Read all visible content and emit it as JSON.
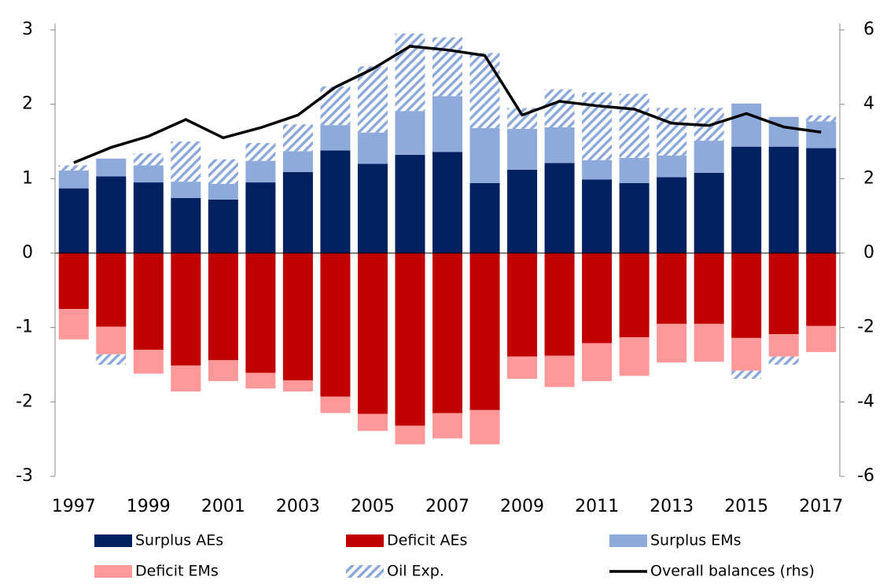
{
  "chart_data": {
    "type": "bar",
    "categories": [
      "1997",
      null,
      "1999",
      null,
      "2001",
      null,
      "2003",
      null,
      "2005",
      null,
      "2007",
      null,
      "2009",
      null,
      "2011",
      null,
      "2013",
      null,
      "2015",
      null,
      "2017"
    ],
    "ylim": [
      -3,
      3
    ],
    "yticks": [
      -3,
      -2,
      -1,
      0,
      1,
      2,
      3
    ],
    "y2lim": [
      -6,
      6
    ],
    "y2ticks": [
      -6,
      -4,
      -2,
      0,
      2,
      4,
      6
    ],
    "series": [
      {
        "name": "Surplus AEs",
        "color": "#002060",
        "values": [
          0.87,
          1.03,
          0.95,
          0.74,
          0.72,
          0.95,
          1.09,
          1.38,
          1.2,
          1.32,
          1.36,
          0.94,
          1.12,
          1.21,
          0.99,
          0.94,
          1.02,
          1.08,
          1.43,
          1.43,
          1.41
        ]
      },
      {
        "name": "Deficit AEs",
        "color": "#c00000",
        "values": [
          -0.75,
          -0.99,
          -1.3,
          -1.51,
          -1.44,
          -1.61,
          -1.71,
          -1.93,
          -2.16,
          -2.32,
          -2.15,
          -2.11,
          -1.39,
          -1.38,
          -1.21,
          -1.13,
          -0.95,
          -0.95,
          -1.14,
          -1.09,
          -0.98
        ]
      },
      {
        "name": "Surplus EMs",
        "color": "#8eaadb",
        "values": [
          0.24,
          0.24,
          0.23,
          0.22,
          0.21,
          0.29,
          0.28,
          0.34,
          0.42,
          0.59,
          0.75,
          0.74,
          0.55,
          0.48,
          0.26,
          0.34,
          0.29,
          0.43,
          0.58,
          0.4,
          0.36
        ]
      },
      {
        "name": "Deficit EMs",
        "color": "#ff9999",
        "values": [
          -0.41,
          -0.37,
          -0.32,
          -0.35,
          -0.28,
          -0.21,
          -0.15,
          -0.22,
          -0.23,
          -0.25,
          -0.34,
          -0.46,
          -0.3,
          -0.42,
          -0.51,
          -0.52,
          -0.52,
          -0.51,
          -0.44,
          -0.3,
          -0.35
        ]
      },
      {
        "name": "Oil Exp.",
        "color": "#8eaadb",
        "pattern": "hatch",
        "values": [
          0.07,
          -0.14,
          0.16,
          0.54,
          0.33,
          0.24,
          0.36,
          0.52,
          0.89,
          1.04,
          0.79,
          1.01,
          0.28,
          0.51,
          0.91,
          0.86,
          0.64,
          0.44,
          -0.11,
          -0.11,
          0.08
        ]
      },
      {
        "name": "Overall balances (rhs)",
        "type": "line",
        "axis": "y2",
        "color": "#000000",
        "values": [
          2.43,
          2.84,
          3.14,
          3.59,
          3.1,
          3.37,
          3.71,
          4.46,
          4.95,
          5.56,
          5.46,
          5.31,
          3.71,
          4.08,
          3.96,
          3.87,
          3.49,
          3.43,
          3.75,
          3.39,
          3.25
        ]
      }
    ]
  }
}
